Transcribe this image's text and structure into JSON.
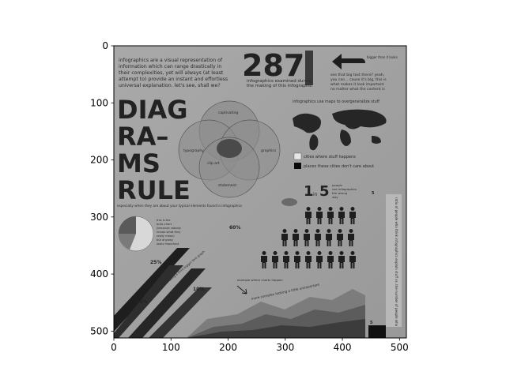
{
  "chart_data": {
    "type": "image",
    "x_ticks": [
      0,
      100,
      200,
      300,
      400,
      500
    ],
    "y_ticks": [
      0,
      100,
      200,
      300,
      400,
      500
    ],
    "xlim": [
      0,
      512
    ],
    "ylim": [
      512,
      0
    ],
    "grid": false,
    "colormap": "grayscale"
  },
  "infographic": {
    "intro_text": [
      "infographics are a visual representation of",
      "information which can range drastically in",
      "their complexities, yet will always (at least",
      "attempt to) provide an instant and effortless",
      "universal explanation. let's see, shall we?"
    ],
    "count_big": "287",
    "count_caption": [
      "infographics examined during",
      "the making of this infographic"
    ],
    "arrow_caption": "bigger than it looks",
    "arrow_text": [
      "see that big text there? yeah,",
      "you can... cause it's big, this is",
      "what makes it look important",
      "no matter what the content is"
    ],
    "title_lines": [
      "DIAG",
      "RA–",
      "MS",
      "RULE"
    ],
    "venn_labels": [
      "captivating",
      "typography",
      "graphics",
      "clip art",
      "statement"
    ],
    "map_title": "infographics use maps to overgeneralize stuff",
    "map_legend": [
      {
        "label": "cities where stuff happens",
        "color": "#e6e6e6"
      },
      {
        "label": "places these cities don't care about",
        "color": "#0a0a0a"
      }
    ],
    "subtitle": "especially when they are about your typical elements found in infographics",
    "ratio_big": "1",
    "ratio_small": "in",
    "ratio_big2": "5",
    "ratio_text": [
      "people",
      "use infographics",
      "the wrong",
      "way"
    ],
    "pie_caption": [
      "this is the",
      "bulls-chart",
      "(because nobody",
      "knows what they",
      "really mean)",
      "but anyway",
      "looks important"
    ],
    "percentages": [
      "60%",
      "25%",
      "10%",
      "05%"
    ],
    "stripe_caption": "likelihood of using a third bigger font graph",
    "area_caption": "example where charts happen",
    "area_text": "more complex looking a little unimportant",
    "vertical_text": "ratio of people who think infographics explain stuff vs. the number of people who",
    "bar_label_top": "5",
    "bar_label_bottom": "5",
    "accent_colors": {
      "background": "#a0a0a0",
      "dark": "#1e1e1e",
      "light": "#d8d8d8"
    }
  }
}
